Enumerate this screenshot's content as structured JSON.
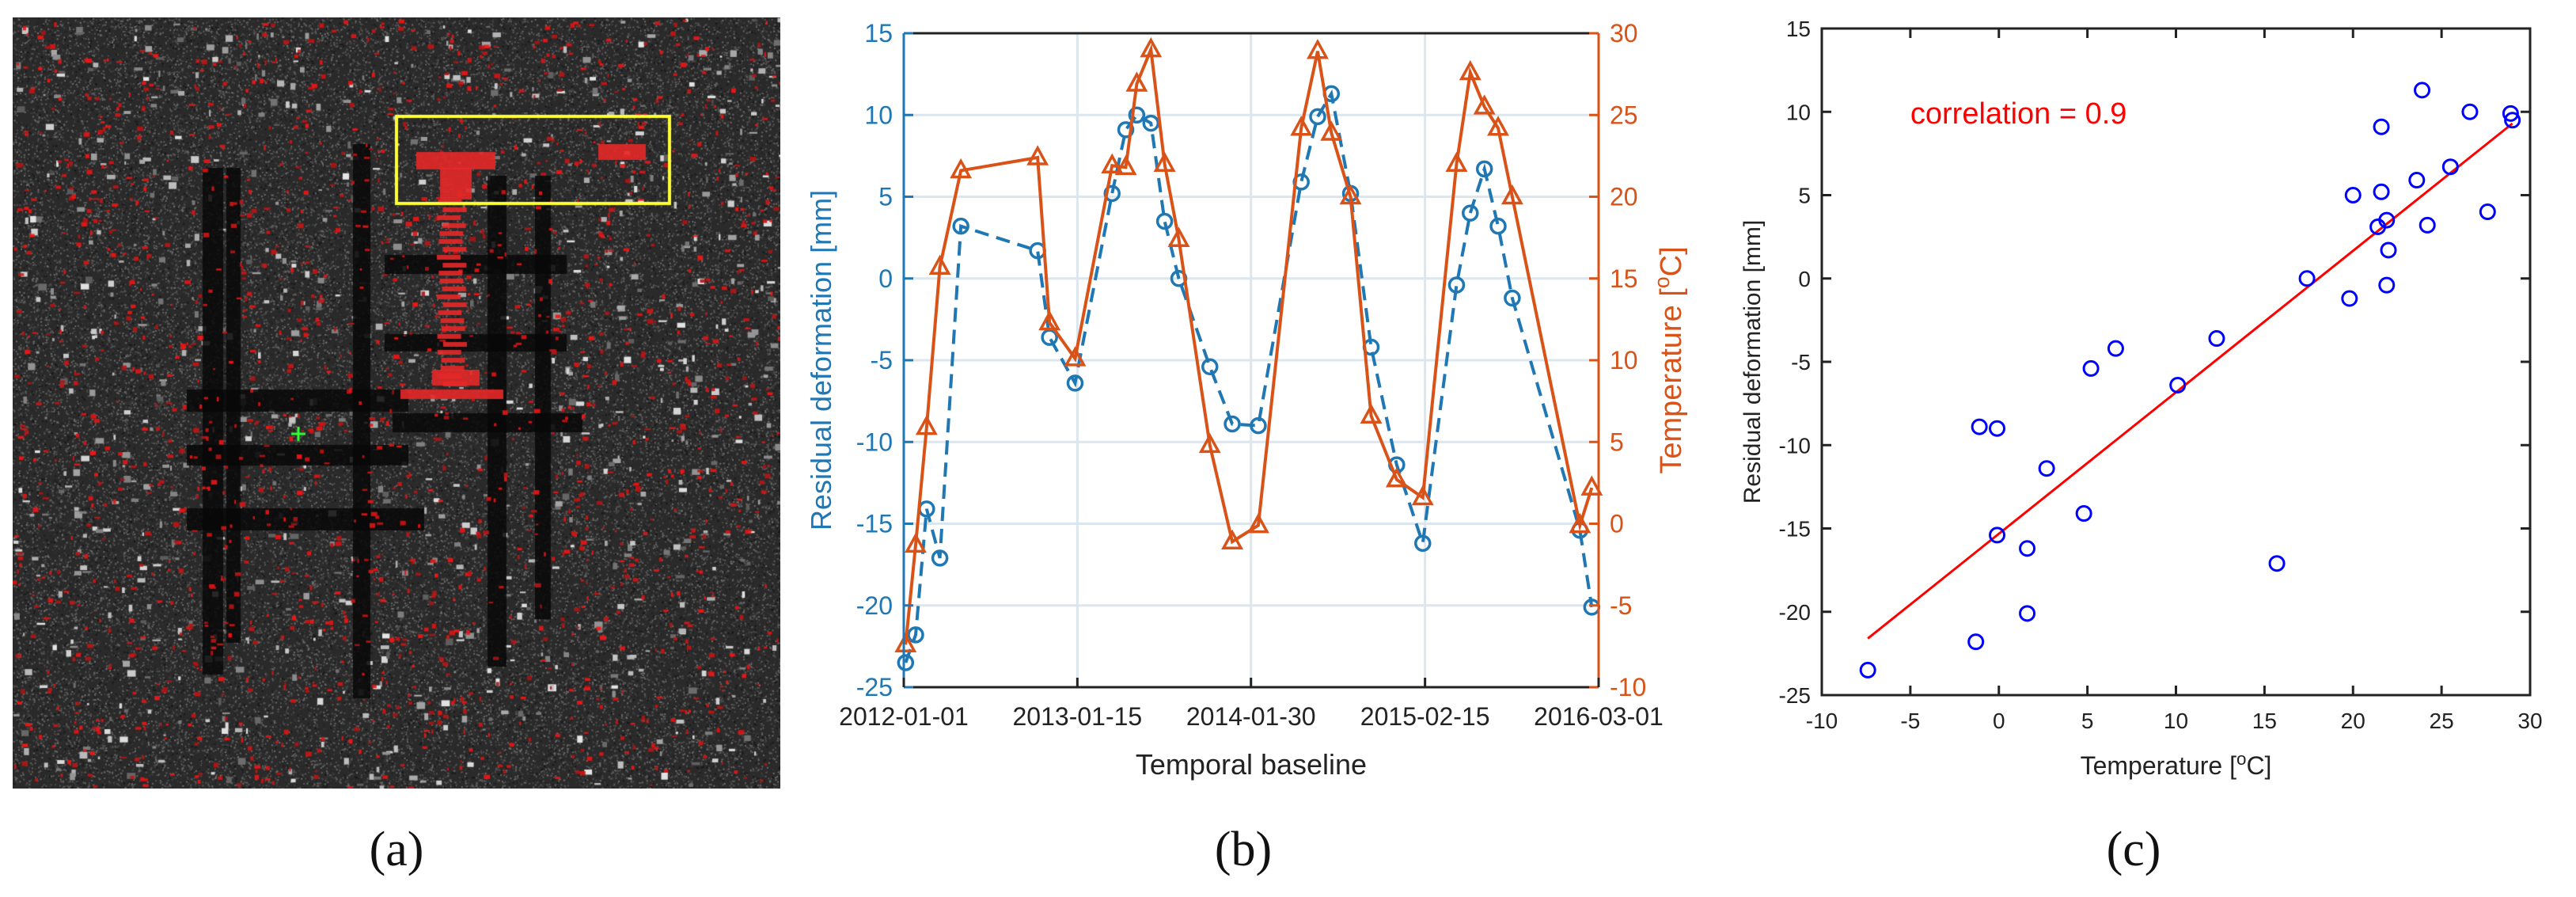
{
  "panel_labels": {
    "a": "(a)",
    "b": "(b)",
    "c": "(c)"
  },
  "colors": {
    "deformation": "#1f77b4",
    "temperature": "#d95319",
    "scatter_points": "#0000ff",
    "fit_line": "#ff0000",
    "annotation": "#ff0000",
    "highlight_box": "#ffff33",
    "marker_cross": "#33ff33"
  },
  "chart_data": [
    {
      "id": "b",
      "type": "line",
      "xlabel": "Temporal baseline",
      "x_ticks": [
        "2012-01-01",
        "2013-01-15",
        "2014-01-30",
        "2015-02-15",
        "2016-03-01"
      ],
      "x_range": [
        "2012-01-01",
        "2016-03-01"
      ],
      "y_left": {
        "label": "Residual deformation [mm]",
        "range": [
          -25,
          15
        ],
        "ticks": [
          "-25",
          "-20",
          "-15",
          "-10",
          "-5",
          "0",
          "5",
          "10",
          "15"
        ]
      },
      "y_right": {
        "label": "Temperature [°C]",
        "range": [
          -10,
          30
        ],
        "ticks": [
          "-10",
          "-5",
          "0",
          "5",
          "10",
          "15",
          "20",
          "25",
          "30"
        ]
      },
      "grid": true,
      "series": [
        {
          "axis": "left",
          "marker": "circle",
          "line_style": "dashed",
          "points": [
            [
              "2012-01-05",
              -23.5
            ],
            [
              "2012-01-27",
              -21.8
            ],
            [
              "2012-02-20",
              -14.1
            ],
            [
              "2012-03-20",
              -17.1
            ],
            [
              "2012-05-05",
              3.2
            ],
            [
              "2012-10-20",
              1.7
            ],
            [
              "2012-11-15",
              -3.6
            ],
            [
              "2013-01-10",
              -6.4
            ],
            [
              "2013-04-01",
              5.2
            ],
            [
              "2013-05-01",
              9.1
            ],
            [
              "2013-05-25",
              10.0
            ],
            [
              "2013-06-25",
              9.5
            ],
            [
              "2013-07-25",
              3.5
            ],
            [
              "2013-08-25",
              0.0
            ],
            [
              "2013-11-01",
              -5.4
            ],
            [
              "2013-12-20",
              -8.9
            ],
            [
              "2014-02-15",
              -9.0
            ],
            [
              "2014-05-20",
              5.9
            ],
            [
              "2014-06-25",
              9.9
            ],
            [
              "2014-07-25",
              11.3
            ],
            [
              "2014-09-05",
              5.2
            ],
            [
              "2014-10-20",
              -4.2
            ],
            [
              "2014-12-15",
              -11.4
            ],
            [
              "2015-02-10",
              -16.2
            ],
            [
              "2015-04-25",
              -0.4
            ],
            [
              "2015-05-25",
              4.0
            ],
            [
              "2015-06-25",
              6.7
            ],
            [
              "2015-07-25",
              3.2
            ],
            [
              "2015-08-25",
              -1.2
            ],
            [
              "2016-01-20",
              -15.4
            ],
            [
              "2016-02-15",
              -20.1
            ]
          ]
        },
        {
          "axis": "right",
          "marker": "triangle",
          "line_style": "solid",
          "points": [
            [
              "2012-01-05",
              -7.4
            ],
            [
              "2012-01-27",
              -1.3
            ],
            [
              "2012-02-20",
              5.9
            ],
            [
              "2012-03-20",
              15.7
            ],
            [
              "2012-05-05",
              21.6
            ],
            [
              "2012-10-20",
              22.4
            ],
            [
              "2012-11-15",
              12.3
            ],
            [
              "2013-01-10",
              10.1
            ],
            [
              "2013-04-01",
              21.9
            ],
            [
              "2013-05-01",
              21.8
            ],
            [
              "2013-05-25",
              26.9
            ],
            [
              "2013-06-25",
              29.0
            ],
            [
              "2013-07-25",
              22.0
            ],
            [
              "2013-08-25",
              17.4
            ],
            [
              "2013-11-01",
              4.8
            ],
            [
              "2013-12-20",
              -1.1
            ],
            [
              "2014-02-15",
              -0.1
            ],
            [
              "2014-05-20",
              24.2
            ],
            [
              "2014-06-25",
              28.9
            ],
            [
              "2014-07-25",
              23.9
            ],
            [
              "2014-09-05",
              20.0
            ],
            [
              "2014-10-20",
              6.6
            ],
            [
              "2014-12-15",
              2.7
            ],
            [
              "2015-02-10",
              1.6
            ],
            [
              "2015-04-25",
              22.0
            ],
            [
              "2015-05-25",
              27.6
            ],
            [
              "2015-06-25",
              25.5
            ],
            [
              "2015-07-25",
              24.2
            ],
            [
              "2015-08-25",
              20.0
            ],
            [
              "2016-01-20",
              -0.1
            ],
            [
              "2016-02-15",
              2.2
            ]
          ]
        }
      ]
    },
    {
      "id": "c",
      "type": "scatter",
      "xlabel": "Temperature [°C]",
      "ylabel": "Residual deformation [mm]",
      "xlim": [
        -10,
        30
      ],
      "ylim": [
        -25,
        15
      ],
      "x_ticks": [
        "-10",
        "-5",
        "0",
        "5",
        "10",
        "15",
        "20",
        "25",
        "30"
      ],
      "y_ticks": [
        "-25",
        "-20",
        "-15",
        "-10",
        "-5",
        "0",
        "5",
        "10",
        "15"
      ],
      "annotation": "correlation = 0.9",
      "fit_line": {
        "x": [
          -7.4,
          29.0
        ],
        "y": [
          -21.6,
          9.3
        ]
      },
      "points": [
        [
          -7.4,
          -23.5
        ],
        [
          -1.3,
          -21.8
        ],
        [
          -1.1,
          -8.9
        ],
        [
          -0.1,
          -9.0
        ],
        [
          -0.1,
          -15.4
        ],
        [
          1.6,
          -16.2
        ],
        [
          1.6,
          -20.1
        ],
        [
          2.7,
          -11.4
        ],
        [
          4.8,
          -14.1
        ],
        [
          5.2,
          -5.4
        ],
        [
          6.6,
          -4.2
        ],
        [
          10.1,
          -6.4
        ],
        [
          12.3,
          -3.6
        ],
        [
          15.7,
          -17.1
        ],
        [
          17.4,
          0.0
        ],
        [
          20.0,
          5.0
        ],
        [
          19.8,
          -1.2
        ],
        [
          21.4,
          3.1
        ],
        [
          21.6,
          9.1
        ],
        [
          21.6,
          5.2
        ],
        [
          21.9,
          3.5
        ],
        [
          21.9,
          -0.4
        ],
        [
          22.0,
          1.7
        ],
        [
          23.6,
          5.9
        ],
        [
          23.9,
          11.3
        ],
        [
          24.2,
          3.2
        ],
        [
          25.5,
          6.7
        ],
        [
          26.6,
          10.0
        ],
        [
          27.6,
          4.0
        ],
        [
          28.9,
          9.9
        ],
        [
          29.0,
          9.5
        ]
      ]
    }
  ]
}
